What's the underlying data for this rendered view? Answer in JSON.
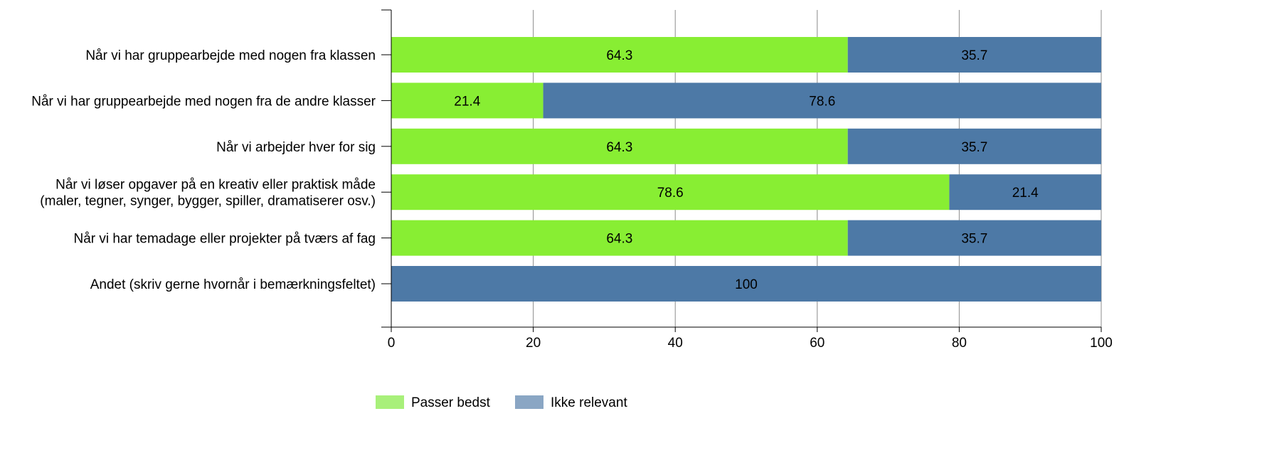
{
  "chart_data": {
    "type": "bar",
    "orientation": "horizontal",
    "stacked": true,
    "categories": [
      [
        "Når vi har gruppearbejde med nogen fra klassen"
      ],
      [
        "Når vi har gruppearbejde med nogen fra de andre klasser"
      ],
      [
        "Når vi arbejder hver for sig"
      ],
      [
        "Når vi løser opgaver på en kreativ eller praktisk måde",
        "(maler, tegner, synger, bygger, spiller, dramatiserer osv.)"
      ],
      [
        "Når vi har temadage eller projekter på tværs af fag"
      ],
      [
        "Andet (skriv gerne hvornår i bemærkningsfeltet)"
      ]
    ],
    "series": [
      {
        "name": "Passer bedst",
        "color": "#88ee33",
        "legend_color": "#a8f07a",
        "values": [
          64.3,
          21.4,
          64.3,
          78.6,
          64.3,
          0
        ]
      },
      {
        "name": "Ikke relevant",
        "color": "#4d79a6",
        "legend_color": "#8aa6c4",
        "values": [
          35.7,
          78.6,
          35.7,
          21.4,
          35.7,
          100
        ]
      }
    ],
    "data_labels": [
      [
        "64.3",
        "21.4",
        "64.3",
        "78.6",
        "64.3",
        ""
      ],
      [
        "35.7",
        "78.6",
        "35.7",
        "21.4",
        "35.7",
        "100"
      ]
    ],
    "xlim": [
      0,
      100
    ],
    "xticks": [
      "0",
      "20",
      "40",
      "60",
      "80",
      "100"
    ],
    "grid": true,
    "legend_position": "bottom"
  }
}
